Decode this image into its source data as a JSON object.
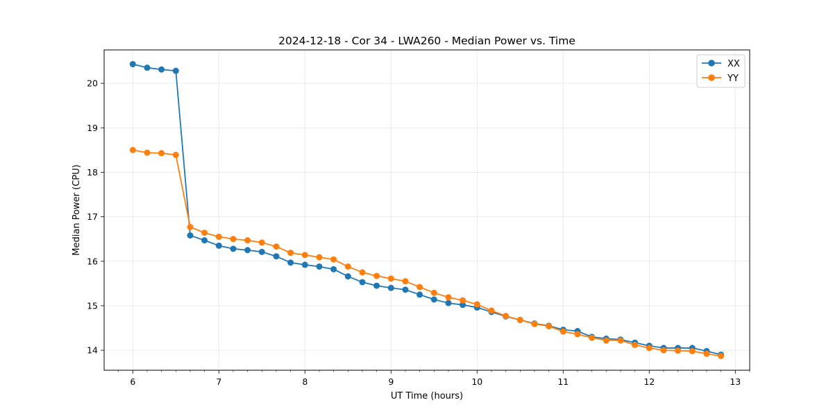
{
  "chart_data": {
    "type": "line",
    "title": "2024-12-18 - Cor 34 - LWA260 - Median Power vs. Time",
    "xlabel": "UT Time (hours)",
    "ylabel": "Median Power (CPU)",
    "xlim": [
      5.667,
      13.167
    ],
    "ylim": [
      13.55,
      20.75
    ],
    "xticks": [
      6,
      7,
      8,
      9,
      10,
      11,
      12,
      13
    ],
    "xtick_labels": [
      "6",
      "7",
      "8",
      "9",
      "10",
      "11",
      "12",
      "13"
    ],
    "yticks": [
      14,
      15,
      16,
      17,
      18,
      19,
      20
    ],
    "ytick_labels": [
      "14",
      "15",
      "16",
      "17",
      "18",
      "19",
      "20"
    ],
    "grid": true,
    "legend_position": "top-right",
    "x": [
      6.0,
      6.167,
      6.333,
      6.5,
      6.667,
      6.833,
      7.0,
      7.167,
      7.333,
      7.5,
      7.667,
      7.833,
      8.0,
      8.167,
      8.333,
      8.5,
      8.667,
      8.833,
      9.0,
      9.167,
      9.333,
      9.5,
      9.667,
      9.833,
      10.0,
      10.167,
      10.333,
      10.5,
      10.667,
      10.833,
      11.0,
      11.167,
      11.333,
      11.5,
      11.667,
      11.833,
      12.0,
      12.167,
      12.333,
      12.5,
      12.667,
      12.833
    ],
    "series": [
      {
        "name": "XX",
        "color": "#1f77b4",
        "values": [
          20.43,
          20.35,
          20.31,
          20.28,
          16.58,
          16.47,
          16.35,
          16.28,
          16.25,
          16.21,
          16.11,
          15.97,
          15.92,
          15.88,
          15.82,
          15.66,
          15.53,
          15.45,
          15.4,
          15.36,
          15.25,
          15.14,
          15.06,
          15.02,
          14.96,
          14.86,
          14.76,
          14.68,
          14.6,
          14.55,
          14.46,
          14.43,
          14.3,
          14.26,
          14.24,
          14.17,
          14.1,
          14.05,
          14.05,
          14.05,
          13.98,
          13.9
        ]
      },
      {
        "name": "YY",
        "color": "#ff7f0e",
        "values": [
          18.5,
          18.44,
          18.43,
          18.39,
          16.77,
          16.64,
          16.55,
          16.5,
          16.47,
          16.42,
          16.33,
          16.19,
          16.14,
          16.09,
          16.04,
          15.88,
          15.75,
          15.67,
          15.61,
          15.55,
          15.42,
          15.29,
          15.19,
          15.12,
          15.03,
          14.89,
          14.77,
          14.68,
          14.59,
          14.54,
          14.42,
          14.36,
          14.28,
          14.22,
          14.22,
          14.12,
          14.05,
          14.0,
          13.99,
          13.98,
          13.92,
          13.87
        ]
      }
    ]
  }
}
